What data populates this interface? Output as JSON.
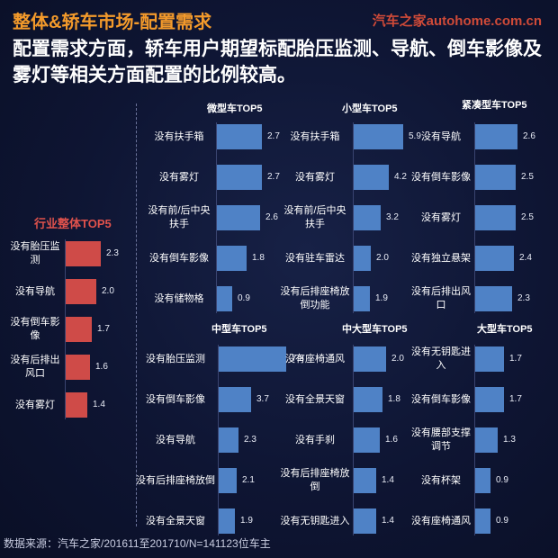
{
  "header": {
    "title": "整体&轿车市场-配置需求",
    "watermark": "汽车之家autohome.com.cn"
  },
  "subtitle": "配置需求方面，轿车用户期望标配胎压监测、导航、倒车影像及雾灯等相关方面配置的比例较高。",
  "source": "数据来源：汽车之家/201611至201710/N=141123位车主",
  "colors": {
    "title": "#f39a2b",
    "blue_bar": "#4f82c6",
    "red_bar": "#cf4b48",
    "watermark": "#d04a38"
  },
  "chart_data": [
    {
      "type": "bar",
      "title": "行业整体TOP5",
      "categories": [
        "没有胎压监测",
        "没有导航",
        "没有倒车影像",
        "没有后排出风口",
        "没有雾灯"
      ],
      "values": [
        2.3,
        2.0,
        1.7,
        1.6,
        1.4
      ],
      "orientation": "horizontal",
      "color": "red"
    },
    {
      "type": "bar",
      "title": "微型车TOP5",
      "categories": [
        "没有扶手箱",
        "没有雾灯",
        "没有前/后中央扶手",
        "没有倒车影像",
        "没有储物格"
      ],
      "values": [
        2.7,
        2.7,
        2.6,
        1.8,
        0.9
      ],
      "orientation": "horizontal",
      "color": "blue"
    },
    {
      "type": "bar",
      "title": "小型车TOP5",
      "categories": [
        "没有扶手箱",
        "没有雾灯",
        "没有前/后中央扶手",
        "没有驻车雷达",
        "没有后排座椅放倒功能"
      ],
      "values": [
        5.9,
        4.2,
        3.2,
        2.0,
        1.9
      ],
      "orientation": "horizontal",
      "color": "blue"
    },
    {
      "type": "bar",
      "title": "紧凑型车TOP5",
      "categories": [
        "没有导航",
        "没有倒车影像",
        "没有雾灯",
        "没有独立悬架",
        "没有后排出风口"
      ],
      "values": [
        2.6,
        2.5,
        2.5,
        2.4,
        2.3
      ],
      "orientation": "horizontal",
      "color": "blue"
    },
    {
      "type": "bar",
      "title": "中型车TOP5",
      "categories": [
        "没有胎压监测",
        "没有倒车影像",
        "没有导航",
        "没有后排座椅放倒",
        "没有全景天窗"
      ],
      "values": [
        7.8,
        3.7,
        2.3,
        2.1,
        1.9
      ],
      "orientation": "horizontal",
      "color": "blue"
    },
    {
      "type": "bar",
      "title": "中大型车TOP5",
      "categories": [
        "没有座椅通风",
        "没有全景天窗",
        "没有手刹",
        "没有后排座椅放倒",
        "没有无钥匙进入"
      ],
      "values": [
        2.0,
        1.8,
        1.6,
        1.4,
        1.4
      ],
      "orientation": "horizontal",
      "color": "blue"
    },
    {
      "type": "bar",
      "title": "大型车TOP5",
      "categories": [
        "没有无钥匙进入",
        "没有倒车影像",
        "没有腰部支撑调节",
        "没有杯架",
        "没有座椅通风"
      ],
      "values": [
        1.7,
        1.7,
        1.3,
        0.9,
        0.9
      ],
      "orientation": "horizontal",
      "color": "blue"
    }
  ]
}
